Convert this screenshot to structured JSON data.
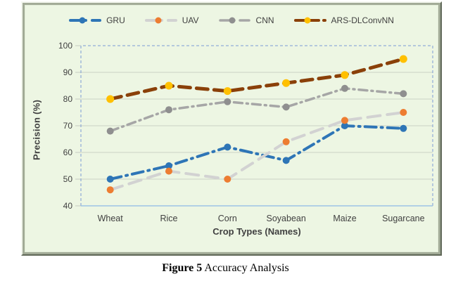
{
  "caption": {
    "label": "Figure 5",
    "text": " Accuracy Analysis"
  },
  "chart_data": {
    "type": "line",
    "title": "",
    "xlabel": "Crop Types (Names)",
    "ylabel": "Precision (%)",
    "ylim": [
      40,
      100
    ],
    "y_ticks": [
      100,
      90,
      80,
      70,
      60,
      50,
      40
    ],
    "categories": [
      "Wheat",
      "Rice",
      "Corn",
      "Soyabean",
      "Maize",
      "Sugarcane"
    ],
    "series": [
      {
        "name": "GRU",
        "values": [
          50,
          55,
          62,
          57,
          70,
          69
        ],
        "line_color": "#2e75b6",
        "marker_color": "#2e75b6",
        "marker_r": 5,
        "width": 4,
        "dash": "16 7 2 7",
        "legend_dash": "15 5 2 9"
      },
      {
        "name": "UAV",
        "values": [
          46,
          53,
          50,
          64,
          72,
          75
        ],
        "line_color": "#d2d2d2",
        "marker_color": "#ed7d31",
        "marker_r": 5,
        "width": 4,
        "dash": "18 10",
        "legend_dash": "15 5 2 9"
      },
      {
        "name": "CNN",
        "values": [
          68,
          76,
          79,
          77,
          84,
          82
        ],
        "line_color": "#a6a6a6",
        "marker_color": "#8f8f8f",
        "marker_r": 5,
        "width": 3.5,
        "dash": "12 6 2 6",
        "legend_dash": "13 5 2 8"
      },
      {
        "name": "ARS-DLConvNN",
        "values": [
          80,
          85,
          83,
          86,
          89,
          95
        ],
        "line_color": "#8a4009",
        "marker_color": "#ffc000",
        "marker_r": 5.5,
        "width": 5,
        "dash": "16 9",
        "legend_dash": "13 7"
      }
    ],
    "legend_position": "top",
    "grid": true,
    "colors": {
      "grid": "#ccd3c6",
      "axis_line": "#9dc3e6",
      "border_dash": "#7a9bd4",
      "text": "#404040",
      "panel_bg": "#edf6e3"
    }
  }
}
